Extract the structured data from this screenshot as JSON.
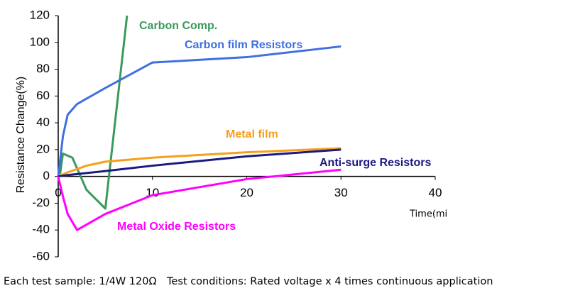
{
  "chart_data": {
    "type": "line",
    "ylabel": "Resistance Change(%)",
    "xlabel": "Time(mi",
    "xlim": [
      0,
      40
    ],
    "xticks": [
      0,
      10,
      20,
      30,
      40
    ],
    "ylim": [
      -60,
      120
    ],
    "yticks": [
      -60,
      -40,
      -20,
      0,
      20,
      40,
      60,
      80,
      100,
      120
    ],
    "grid": false,
    "series": [
      {
        "name": "Carbon Comp.",
        "color": "#3a9a5c",
        "x": [
          0.2,
          0.5,
          1.5,
          3,
          5,
          7.3
        ],
        "values": [
          2,
          17,
          14,
          -10,
          -24,
          120
        ]
      },
      {
        "name": "Carbon film Resistors",
        "color": "#3f6fe0",
        "x": [
          0,
          0.5,
          1,
          2,
          3,
          5,
          10,
          20,
          30
        ],
        "values": [
          0,
          30,
          46,
          54,
          58,
          66,
          85,
          89,
          97
        ]
      },
      {
        "name": "Metal film",
        "color": "#f5a01a",
        "x": [
          0,
          1,
          3,
          5,
          10,
          20,
          30
        ],
        "values": [
          0,
          3,
          8,
          11,
          14,
          18,
          21
        ]
      },
      {
        "name": "Anti-surge Resistors",
        "color": "#1a1a80",
        "x": [
          0,
          1,
          5,
          10,
          20,
          30
        ],
        "values": [
          0,
          1,
          4,
          8,
          15,
          20
        ]
      },
      {
        "name": "Metal Oxide Resistors",
        "color": "#ff00ff",
        "x": [
          0,
          0.5,
          1,
          2,
          5,
          10,
          20,
          30
        ],
        "values": [
          0,
          -15,
          -28,
          -40,
          -28,
          -14,
          -2,
          5
        ]
      }
    ]
  },
  "footnote": "Each test sample: 1/4W 120Ω　Test conditions: Rated voltage x 4 times continuous application"
}
